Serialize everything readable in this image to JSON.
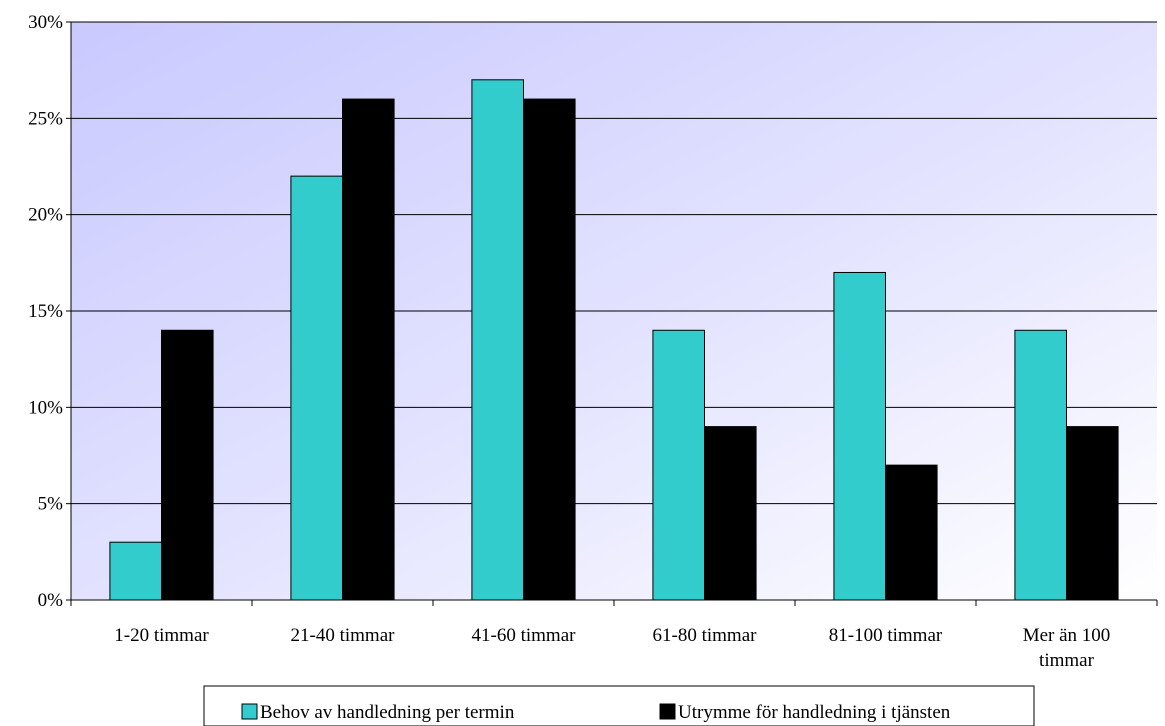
{
  "chart_data": {
    "type": "bar",
    "categories": [
      "1-20 timmar",
      "21-40 timmar",
      "41-60 timmar",
      "61-80 timmar",
      "81-100 timmar",
      "Mer än 100 timmar"
    ],
    "category_lines": [
      [
        "1-20 timmar"
      ],
      [
        "21-40 timmar"
      ],
      [
        "41-60 timmar"
      ],
      [
        "61-80 timmar"
      ],
      [
        "81-100 timmar"
      ],
      [
        "Mer än 100",
        "timmar"
      ]
    ],
    "series": [
      {
        "name": "Behov av handledning per termin",
        "values": [
          3,
          22,
          27,
          14,
          17,
          14
        ],
        "color": "#33CCCC"
      },
      {
        "name": "Utrymme för handledning i tjänsten",
        "values": [
          14,
          26,
          26,
          9,
          7,
          9
        ],
        "color": "#000000"
      }
    ],
    "ylim": [
      0,
      30
    ],
    "yticks": [
      0,
      5,
      10,
      15,
      20,
      25,
      30
    ],
    "ytick_labels": [
      "0%",
      "5%",
      "10%",
      "15%",
      "20%",
      "25%",
      "30%"
    ],
    "grid": true,
    "legend_position": "bottom",
    "title": "",
    "xlabel": "",
    "ylabel": ""
  }
}
